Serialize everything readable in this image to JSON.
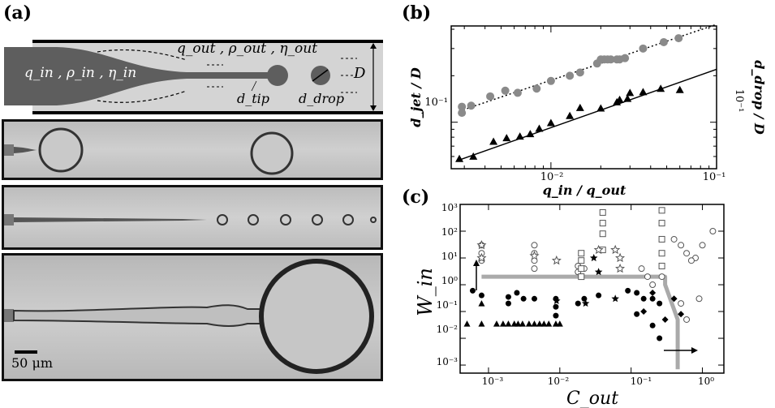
{
  "panel_a": {
    "label": "(a)",
    "inner_vars": "q_in , ρ_in , η_in",
    "outer_vars": "q_out , ρ_out , η_out",
    "tip_label": "d_tip",
    "drop_label": "d_drop",
    "width_label": "D",
    "scale_bar": "50 μm"
  },
  "panel_b": {
    "label": "(b)",
    "xlabel": "q_in / q_out",
    "ylabel_left": "d_jet / D",
    "ylabel_right": "d_drop / D",
    "xticks": [
      "10⁻²",
      "10⁻¹"
    ],
    "yticks_left": [
      "10⁻¹"
    ],
    "yticks_right": [
      "10⁻¹"
    ]
  },
  "panel_c": {
    "label": "(c)",
    "xlabel": "C_out",
    "ylabel": "W_in",
    "xticks": [
      "10⁻³",
      "10⁻²",
      "10⁻¹",
      "10⁰"
    ],
    "yticks": [
      "10³",
      "10²",
      "10¹",
      "10⁰",
      "10⁻¹",
      "10⁻²",
      "10⁻³"
    ]
  },
  "chart_data": [
    {
      "type": "scatter",
      "id": "b",
      "xlabel": "q_in / q_out",
      "ylabel": "d_jet / D",
      "log_x": true,
      "log_y": true,
      "xlim": [
        0.0025,
        0.1
      ],
      "series": [
        {
          "marker": "circle",
          "color": "#8a8a8a",
          "x": [
            0.0029,
            0.0029,
            0.0033,
            0.0043,
            0.0053,
            0.0063,
            0.0082,
            0.01,
            0.013,
            0.015,
            0.019,
            0.02,
            0.021,
            0.022,
            0.023,
            0.025,
            0.026,
            0.028,
            0.036,
            0.048,
            0.059
          ],
          "y": [
            0.115,
            0.126,
            0.128,
            0.147,
            0.16,
            0.155,
            0.165,
            0.185,
            0.2,
            0.21,
            0.24,
            0.255,
            0.255,
            0.255,
            0.255,
            0.255,
            0.255,
            0.26,
            0.3,
            0.33,
            0.35
          ]
        },
        {
          "marker": "triangle",
          "color": "#000000",
          "x": [
            0.0028,
            0.0034,
            0.0045,
            0.0054,
            0.0065,
            0.0075,
            0.0085,
            0.01,
            0.013,
            0.015,
            0.02,
            0.025,
            0.026,
            0.029,
            0.03,
            0.036,
            0.046,
            0.06
          ],
          "y": [
            0.058,
            0.06,
            0.075,
            0.079,
            0.081,
            0.084,
            0.091,
            0.099,
            0.11,
            0.124,
            0.123,
            0.135,
            0.14,
            0.142,
            0.155,
            0.157,
            0.165,
            0.162
          ]
        }
      ],
      "fit_lines": [
        {
          "style": "dotted",
          "x": [
            0.0028,
            0.1
          ],
          "y": [
            0.118,
            0.43
          ]
        },
        {
          "style": "solid",
          "x": [
            0.0028,
            0.1
          ],
          "y": [
            0.057,
            0.22
          ]
        }
      ]
    },
    {
      "type": "scatter",
      "id": "c",
      "xlabel": "C_out",
      "ylabel": "W_in",
      "log_x": true,
      "log_y": true,
      "xlim": [
        0.0004,
        2
      ],
      "ylim": [
        0.0005,
        1000
      ],
      "series": [
        {
          "marker": "open-circle",
          "x": [
            0.0008,
            0.0008,
            0.0008,
            0.0044,
            0.0044,
            0.0044,
            0.0044,
            0.018,
            0.018,
            0.022,
            0.14,
            0.17,
            0.2,
            0.27,
            0.4,
            0.5,
            0.6,
            0.8,
            1.0,
            1.4,
            0.7,
            0.9,
            0.5,
            0.6
          ],
          "y": [
            30,
            15,
            8,
            30,
            15,
            8,
            4,
            5,
            3,
            4,
            4,
            2,
            1,
            2,
            50,
            30,
            15,
            10,
            30,
            100,
            8,
            0.3,
            0.2,
            0.05
          ]
        },
        {
          "marker": "open-square",
          "x": [
            0.02,
            0.02,
            0.02,
            0.02,
            0.04,
            0.04,
            0.04,
            0.04,
            0.27,
            0.27,
            0.27,
            0.27,
            0.27
          ],
          "y": [
            15,
            8,
            4,
            2,
            500,
            200,
            80,
            20,
            600,
            200,
            50,
            15,
            5
          ]
        },
        {
          "marker": "open-star",
          "x": [
            0.0008,
            0.0008,
            0.0044,
            0.009,
            0.035,
            0.06,
            0.07,
            0.07
          ],
          "y": [
            30,
            10,
            12,
            8,
            20,
            20,
            10,
            4
          ]
        },
        {
          "marker": "filled-circle",
          "x": [
            0.0006,
            0.0008,
            0.0019,
            0.0019,
            0.0025,
            0.0031,
            0.0044,
            0.0088,
            0.0088,
            0.0088,
            0.018,
            0.022,
            0.035,
            0.09,
            0.12,
            0.15,
            0.2,
            0.25,
            0.12,
            0.2,
            0.25
          ],
          "y": [
            0.6,
            0.4,
            0.35,
            0.2,
            0.5,
            0.3,
            0.3,
            0.3,
            0.15,
            0.07,
            0.2,
            0.3,
            0.4,
            0.6,
            0.5,
            0.3,
            0.3,
            0.2,
            0.08,
            0.03,
            0.01
          ]
        },
        {
          "marker": "filled-triangle",
          "x": [
            0.0005,
            0.0008,
            0.0008,
            0.0013,
            0.0016,
            0.0019,
            0.0023,
            0.0026,
            0.003,
            0.0037,
            0.0044,
            0.0052,
            0.006,
            0.007,
            0.0088,
            0.01
          ],
          "y": [
            0.035,
            0.035,
            0.2,
            0.035,
            0.035,
            0.035,
            0.035,
            0.035,
            0.035,
            0.035,
            0.035,
            0.035,
            0.035,
            0.035,
            0.035,
            0.035
          ]
        },
        {
          "marker": "filled-star",
          "x": [
            0.009,
            0.023,
            0.03,
            0.035,
            0.06
          ],
          "y": [
            0.25,
            0.2,
            10,
            3,
            0.3
          ]
        },
        {
          "marker": "filled-diamond",
          "x": [
            0.15,
            0.2,
            0.3,
            0.4,
            0.5
          ],
          "y": [
            0.1,
            0.5,
            0.05,
            0.3,
            0.08
          ]
        }
      ],
      "boundary": {
        "x": [
          0.0008,
          0.3,
          0.3,
          0.45,
          0.45
        ],
        "y": [
          2,
          2,
          1,
          0.05,
          0.0007
        ]
      }
    }
  ]
}
